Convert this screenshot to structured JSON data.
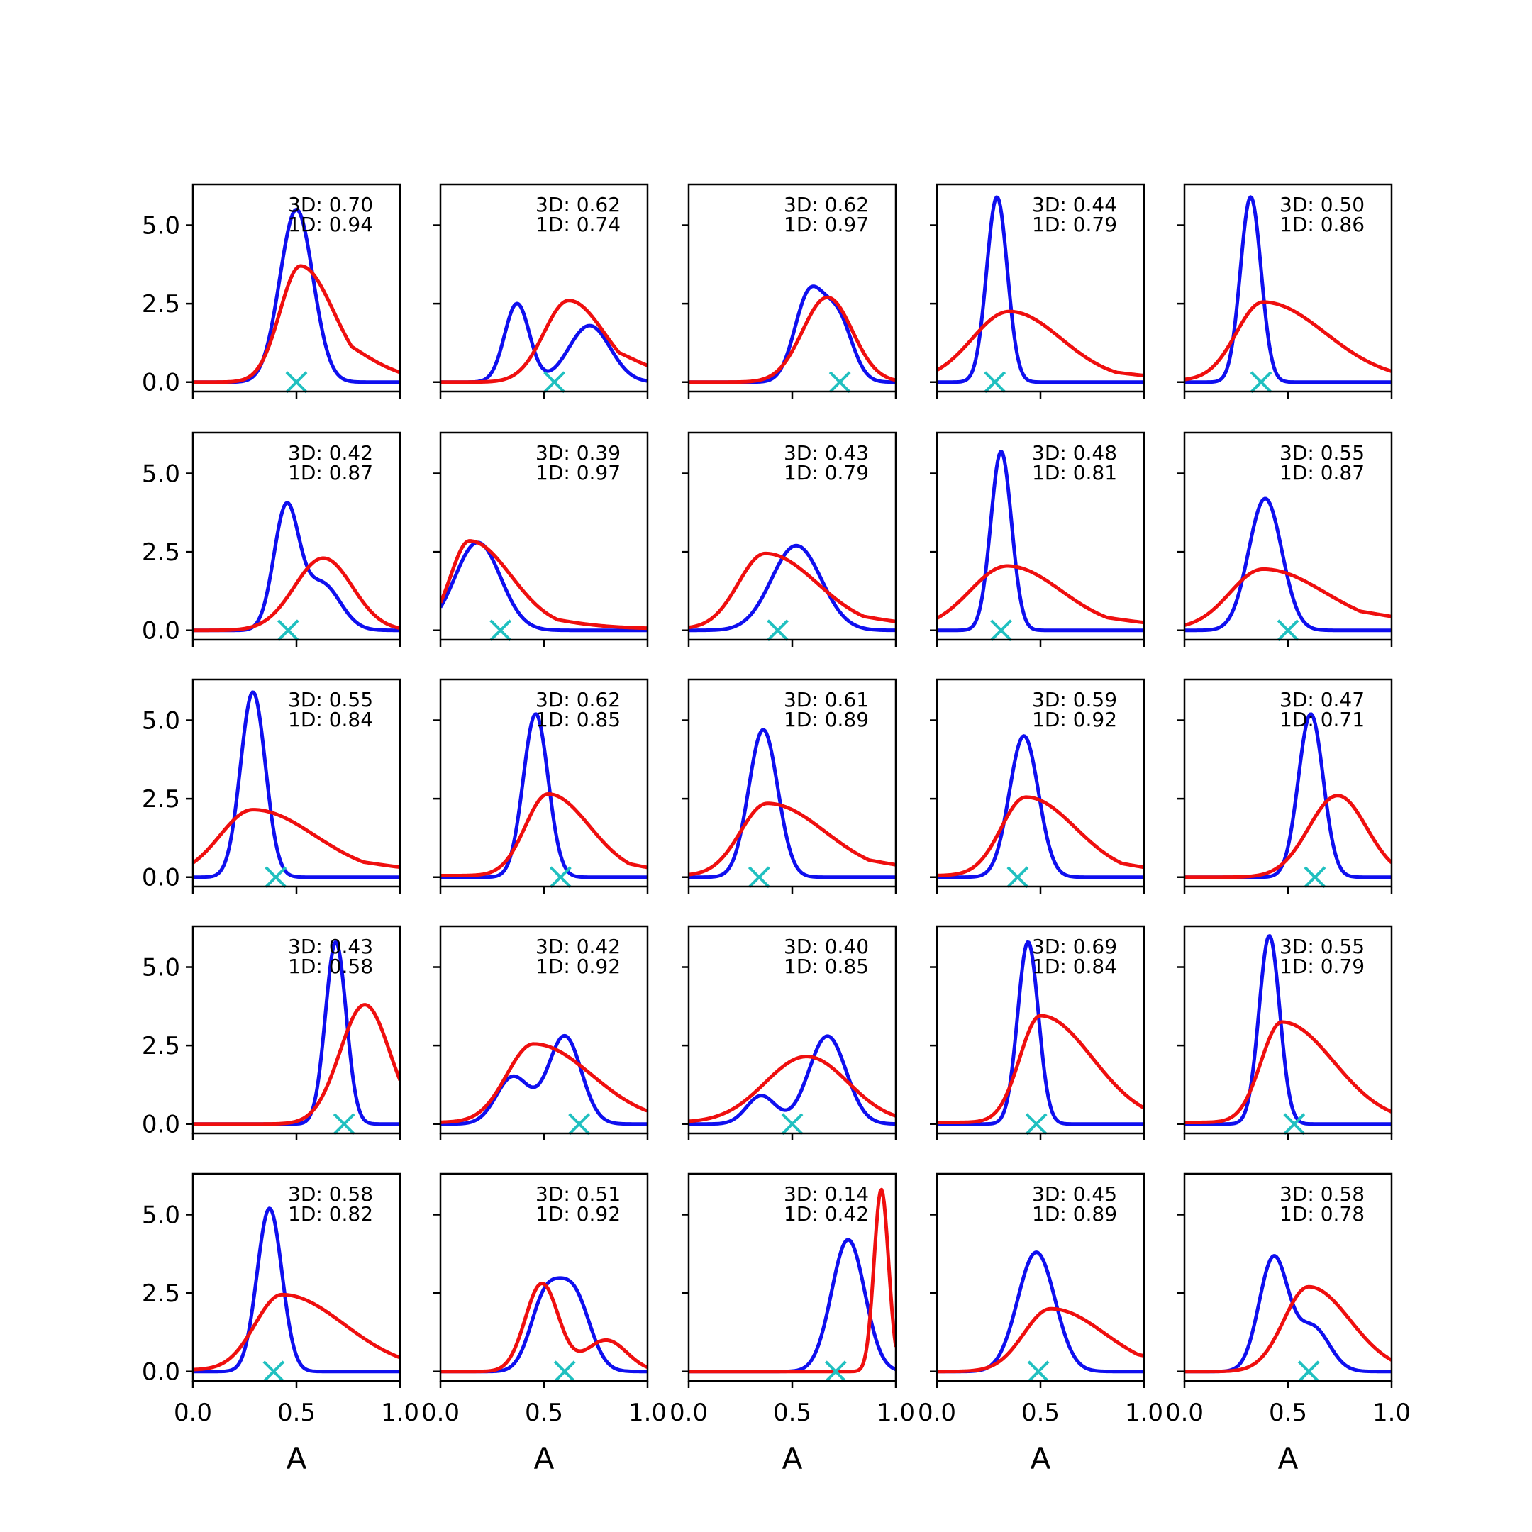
{
  "chart_data": {
    "type": "line",
    "layout": "5x5 grid of small-multiple density plots",
    "xlabel": "A",
    "xlim": [
      0.0,
      1.0
    ],
    "ylim": [
      -0.3,
      6.3
    ],
    "xticks": [
      0.0,
      0.5,
      1.0
    ],
    "xtick_labels": [
      "0.0",
      "0.5",
      "1.0"
    ],
    "yticks": [
      0.0,
      2.5,
      5.0
    ],
    "ytick_labels": [
      "0.0",
      "2.5",
      "5.0"
    ],
    "colors": {
      "series_3d": "#0f0fef",
      "series_1d": "#ef0f0f",
      "marker": "#20c0c0"
    },
    "series_names": [
      "3D",
      "1D"
    ],
    "marker_symbol": "x",
    "panels": [
      {
        "label_3d": "3D: 0.70",
        "label_1d": "1D: 0.94",
        "marker_x": 0.5,
        "blue": [
          [
            0.5,
            0.08,
            5.5
          ]
        ],
        "red": [
          [
            0.52,
            0.1,
            3.7,
            0.16,
            1.8
          ]
        ],
        "red_floor": 0.0
      },
      {
        "label_3d": "3D: 0.62",
        "label_1d": "1D: 0.74",
        "marker_x": 0.55,
        "blue": [
          [
            0.37,
            0.06,
            2.5
          ],
          [
            0.72,
            0.1,
            1.8
          ]
        ],
        "red": [
          [
            0.62,
            0.12,
            2.6,
            0.17,
            1.4
          ]
        ],
        "red_floor": 0.0
      },
      {
        "label_3d": "3D: 0.62",
        "label_1d": "1D: 0.97",
        "marker_x": 0.73,
        "blue": [
          [
            0.58,
            0.07,
            2.7
          ],
          [
            0.72,
            0.07,
            2.0
          ]
        ],
        "red": [
          [
            0.67,
            0.12,
            2.7
          ]
        ],
        "red_floor": 0.0
      },
      {
        "label_3d": "3D: 0.44",
        "label_1d": "1D: 0.79",
        "marker_x": 0.28,
        "blue": [
          [
            0.29,
            0.05,
            5.9
          ]
        ],
        "red": [
          [
            0.35,
            0.18,
            2.2,
            0.25,
            0.6
          ]
        ],
        "red_floor": 0.05
      },
      {
        "label_3d": "3D: 0.50",
        "label_1d": "1D: 0.86",
        "marker_x": 0.37,
        "blue": [
          [
            0.32,
            0.05,
            5.9
          ]
        ],
        "red": [
          [
            0.38,
            0.13,
            2.5,
            0.3,
            0.6
          ]
        ],
        "red_floor": 0.05
      },
      {
        "label_3d": "3D: 0.42",
        "label_1d": "1D: 0.87",
        "marker_x": 0.46,
        "blue": [
          [
            0.45,
            0.06,
            3.8
          ],
          [
            0.62,
            0.09,
            1.5
          ]
        ],
        "red": [
          [
            0.63,
            0.14,
            2.3
          ]
        ],
        "red_floor": 0.0
      },
      {
        "label_3d": "3D: 0.39",
        "label_1d": "1D: 0.97",
        "marker_x": 0.29,
        "blue": [
          [
            0.18,
            0.11,
            2.8
          ]
        ],
        "red": [
          [
            0.14,
            0.09,
            2.8,
            0.2,
            0.7
          ]
        ],
        "red_floor": 0.05
      },
      {
        "label_3d": "3D: 0.43",
        "label_1d": "1D: 0.79",
        "marker_x": 0.43,
        "blue": [
          [
            0.52,
            0.12,
            2.7
          ]
        ],
        "red": [
          [
            0.37,
            0.13,
            2.4,
            0.25,
            0.8
          ]
        ],
        "red_floor": 0.05
      },
      {
        "label_3d": "3D: 0.48",
        "label_1d": "1D: 0.81",
        "marker_x": 0.31,
        "blue": [
          [
            0.31,
            0.05,
            5.7
          ]
        ],
        "red": [
          [
            0.34,
            0.18,
            2.0,
            0.26,
            0.7
          ]
        ],
        "red_floor": 0.05
      },
      {
        "label_3d": "3D: 0.55",
        "label_1d": "1D: 0.87",
        "marker_x": 0.5,
        "blue": [
          [
            0.39,
            0.08,
            4.2
          ]
        ],
        "red": [
          [
            0.38,
            0.16,
            1.9,
            0.3,
            0.9
          ]
        ],
        "red_floor": 0.05
      },
      {
        "label_3d": "3D: 0.55",
        "label_1d": "1D: 0.84",
        "marker_x": 0.4,
        "blue": [
          [
            0.29,
            0.06,
            5.9
          ]
        ],
        "red": [
          [
            0.29,
            0.16,
            2.1,
            0.3,
            0.8
          ]
        ],
        "red_floor": 0.05
      },
      {
        "label_3d": "3D: 0.62",
        "label_1d": "1D: 0.85",
        "marker_x": 0.58,
        "blue": [
          [
            0.46,
            0.06,
            5.2
          ]
        ],
        "red": [
          [
            0.52,
            0.11,
            2.6,
            0.2,
            0.8
          ]
        ],
        "red_floor": 0.05
      },
      {
        "label_3d": "3D: 0.61",
        "label_1d": "1D: 0.89",
        "marker_x": 0.34,
        "blue": [
          [
            0.36,
            0.07,
            4.7
          ]
        ],
        "red": [
          [
            0.38,
            0.13,
            2.3,
            0.28,
            0.9
          ]
        ],
        "red_floor": 0.05
      },
      {
        "label_3d": "3D: 0.59",
        "label_1d": "1D: 0.92",
        "marker_x": 0.39,
        "blue": [
          [
            0.42,
            0.07,
            4.5
          ]
        ],
        "red": [
          [
            0.43,
            0.12,
            2.5,
            0.24,
            0.8
          ]
        ],
        "red_floor": 0.05
      },
      {
        "label_3d": "3D: 0.47",
        "label_1d": "1D: 0.71",
        "marker_x": 0.63,
        "blue": [
          [
            0.61,
            0.06,
            5.2
          ]
        ],
        "red": [
          [
            0.74,
            0.14,
            2.6
          ]
        ],
        "red_floor": 0.0
      },
      {
        "label_3d": "3D: 0.43",
        "label_1d": "1D: 0.58",
        "marker_x": 0.73,
        "blue": [
          [
            0.69,
            0.05,
            5.8
          ]
        ],
        "red": [
          [
            0.83,
            0.12,
            3.8
          ]
        ],
        "red_floor": 0.0
      },
      {
        "label_3d": "3D: 0.42",
        "label_1d": "1D: 0.92",
        "marker_x": 0.67,
        "blue": [
          [
            0.35,
            0.08,
            1.5
          ],
          [
            0.6,
            0.08,
            2.8
          ]
        ],
        "red": [
          [
            0.45,
            0.13,
            2.5,
            0.28,
            0.8
          ]
        ],
        "red_floor": 0.05
      },
      {
        "label_3d": "3D: 0.40",
        "label_1d": "1D: 0.85",
        "marker_x": 0.5,
        "blue": [
          [
            0.35,
            0.07,
            0.9
          ],
          [
            0.67,
            0.09,
            2.8
          ]
        ],
        "red": [
          [
            0.57,
            0.2,
            2.1,
            0.2,
            0.5
          ]
        ],
        "red_floor": 0.05
      },
      {
        "label_3d": "3D: 0.69",
        "label_1d": "1D: 0.84",
        "marker_x": 0.48,
        "blue": [
          [
            0.44,
            0.05,
            5.8
          ]
        ],
        "red": [
          [
            0.5,
            0.1,
            3.4,
            0.25,
            0.8
          ]
        ],
        "red_floor": 0.05
      },
      {
        "label_3d": "3D: 0.55",
        "label_1d": "1D: 0.79",
        "marker_x": 0.53,
        "blue": [
          [
            0.41,
            0.05,
            6.0
          ]
        ],
        "red": [
          [
            0.47,
            0.1,
            3.2,
            0.25,
            0.8
          ]
        ],
        "red_floor": 0.05
      },
      {
        "label_3d": "3D: 0.58",
        "label_1d": "1D: 0.82",
        "marker_x": 0.39,
        "blue": [
          [
            0.37,
            0.06,
            5.2
          ]
        ],
        "red": [
          [
            0.43,
            0.13,
            2.4,
            0.3,
            0.8
          ]
        ],
        "red_floor": 0.05
      },
      {
        "label_3d": "3D: 0.51",
        "label_1d": "1D: 0.92",
        "marker_x": 0.6,
        "blue": [
          [
            0.5,
            0.07,
            2.1
          ],
          [
            0.64,
            0.08,
            2.5
          ]
        ],
        "red": [
          [
            0.49,
            0.08,
            2.8
          ],
          [
            0.8,
            0.1,
            1.0
          ]
        ],
        "red_floor": 0.0
      },
      {
        "label_3d": "3D: 0.14",
        "label_1d": "1D: 0.42",
        "marker_x": 0.71,
        "blue": [
          [
            0.77,
            0.08,
            4.2
          ]
        ],
        "red": [
          [
            0.93,
            0.035,
            5.8
          ]
        ],
        "red_floor": 0.0
      },
      {
        "label_3d": "3D: 0.45",
        "label_1d": "1D: 0.89",
        "marker_x": 0.49,
        "blue": [
          [
            0.48,
            0.09,
            3.8
          ]
        ],
        "red": [
          [
            0.55,
            0.13,
            2.0,
            0.26,
            0.9
          ]
        ],
        "red_floor": 0.0
      },
      {
        "label_3d": "3D: 0.58",
        "label_1d": "1D: 0.78",
        "marker_x": 0.6,
        "blue": [
          [
            0.43,
            0.07,
            3.6
          ],
          [
            0.62,
            0.08,
            1.4
          ]
        ],
        "red": [
          [
            0.6,
            0.12,
            2.7,
            0.2,
            0.8
          ]
        ],
        "red_floor": 0.0
      }
    ]
  }
}
